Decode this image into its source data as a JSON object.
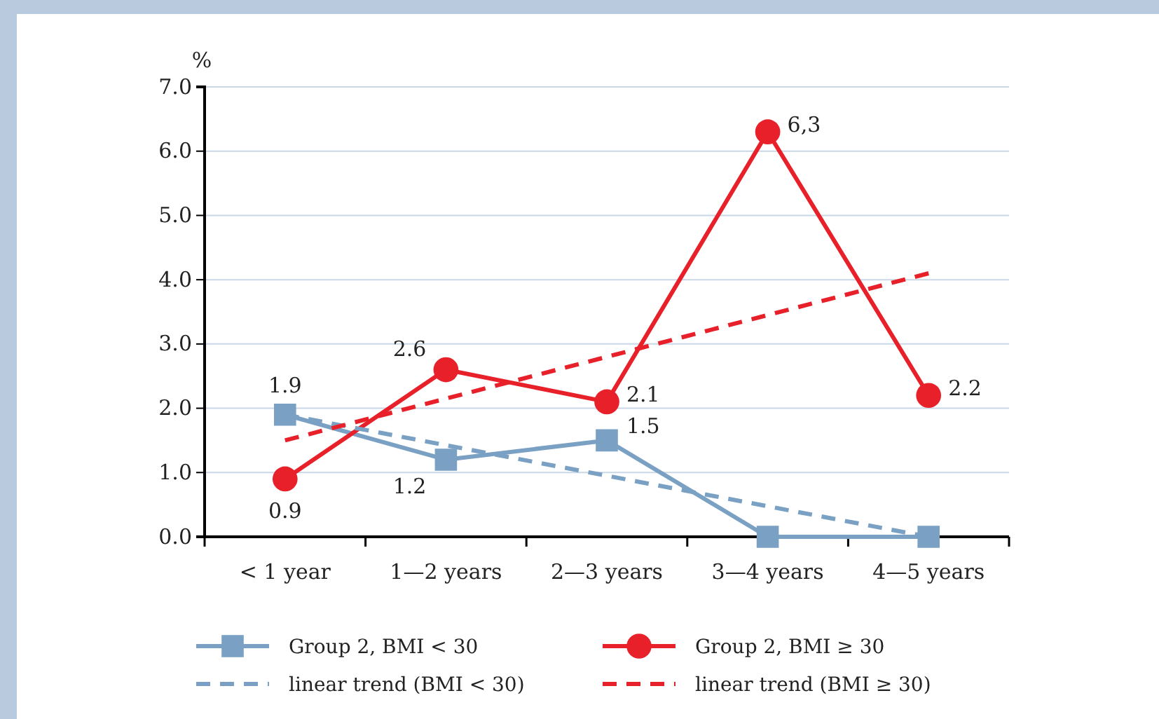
{
  "chart_data": {
    "type": "line",
    "ylabel": "%",
    "categories": [
      "< 1 year",
      "1—2 years",
      "2—3 years",
      "3—4 years",
      "4—5 years"
    ],
    "ylim": [
      0,
      7
    ],
    "yticks": [
      {
        "value": 0,
        "label": "0.0"
      },
      {
        "value": 1,
        "label": "1.0"
      },
      {
        "value": 2,
        "label": "2.0"
      },
      {
        "value": 3,
        "label": "3.0"
      },
      {
        "value": 4,
        "label": "4.0"
      },
      {
        "value": 5,
        "label": "5.0"
      },
      {
        "value": 6,
        "label": "6.0"
      },
      {
        "value": 7,
        "label": "7.0"
      }
    ],
    "grid": "y",
    "legend": "bottom",
    "series": [
      {
        "name": "Group 2, BMI < 30",
        "color": "#7aa1c4",
        "marker": "square",
        "line_style": "solid",
        "values": [
          1.9,
          1.2,
          1.5,
          0,
          0
        ],
        "value_labels": [
          "1.9",
          "1.2",
          "1.5",
          null,
          null
        ]
      },
      {
        "name": "Group 2, BMI ≥ 30",
        "color": "#e8202a",
        "marker": "circle",
        "line_style": "solid",
        "values": [
          0.9,
          2.6,
          2.1,
          6.3,
          2.2
        ],
        "value_labels": [
          "0.9",
          "2.6",
          "2.1",
          "6,3",
          "2.2"
        ]
      },
      {
        "name": "linear trend (BMI < 30)",
        "type": "line",
        "color": "#7aa1c4",
        "line_style": "dashed",
        "x": [
          "< 1 year",
          "4—5 years"
        ],
        "values": [
          1.9,
          0.0
        ]
      },
      {
        "name": "linear trend (BMI ≥ 30)",
        "type": "line",
        "color": "#e8202a",
        "line_style": "dashed",
        "x": [
          "< 1 year",
          "4—5 years"
        ],
        "values": [
          1.5,
          4.1
        ]
      }
    ]
  }
}
